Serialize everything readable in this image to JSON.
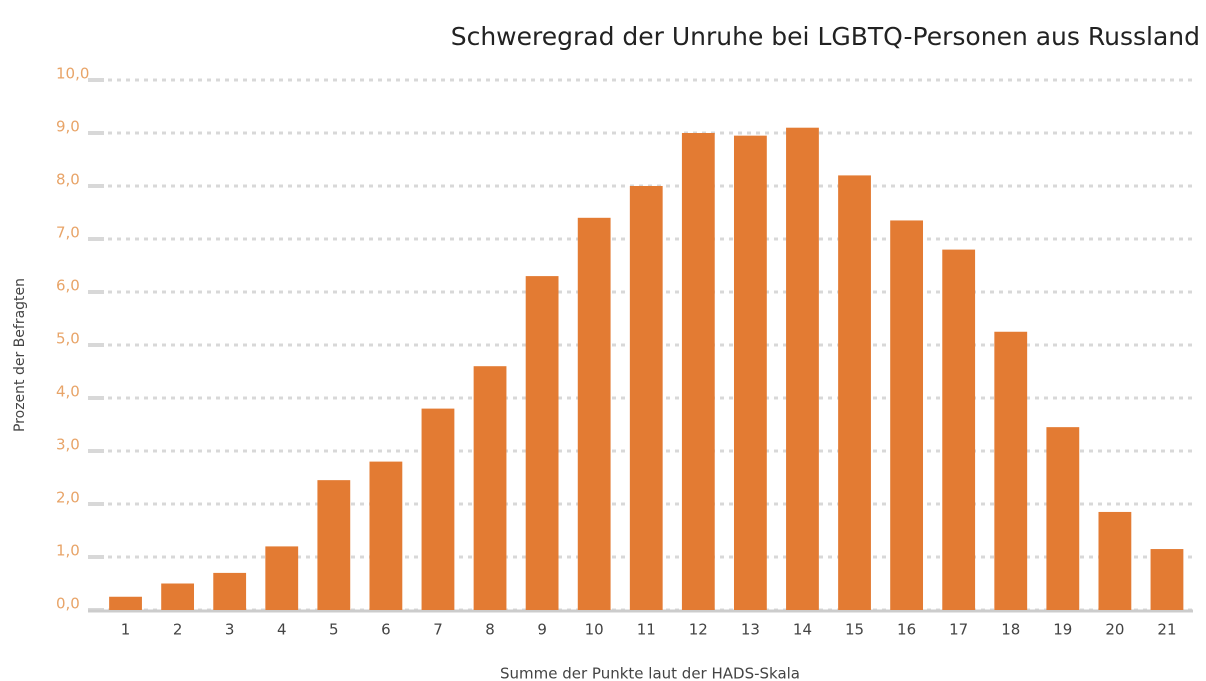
{
  "chart_data": {
    "type": "bar",
    "title": "Schweregrad der Unruhe bei LGBTQ-Personen aus Russland",
    "x_label": "Summe der Punkte laut der HADS-Skala",
    "y_label": "Prozent der Befragten",
    "categories": [
      "1",
      "2",
      "3",
      "4",
      "5",
      "6",
      "7",
      "8",
      "9",
      "10",
      "11",
      "12",
      "13",
      "14",
      "15",
      "16",
      "17",
      "18",
      "19",
      "20",
      "21"
    ],
    "values": [
      0.25,
      0.5,
      0.7,
      1.2,
      2.45,
      2.8,
      3.8,
      4.6,
      6.3,
      7.4,
      8.0,
      9.0,
      8.95,
      9.1,
      8.2,
      7.35,
      6.8,
      5.25,
      3.45,
      1.85,
      1.15
    ],
    "color": "#e37b33",
    "ylim": [
      0,
      10
    ],
    "yticks": [
      {
        "value": 0,
        "label": "0,0"
      },
      {
        "value": 1,
        "label": "1,0"
      },
      {
        "value": 2,
        "label": "2,0"
      },
      {
        "value": 3,
        "label": "3,0"
      },
      {
        "value": 4,
        "label": "4,0"
      },
      {
        "value": 5,
        "label": "5,0"
      },
      {
        "value": 6,
        "label": "6,0"
      },
      {
        "value": 7,
        "label": "7,0"
      },
      {
        "value": 8,
        "label": "8,0"
      },
      {
        "value": 9,
        "label": "9,0"
      },
      {
        "value": 10,
        "label": "10,0"
      }
    ],
    "grid": true
  }
}
